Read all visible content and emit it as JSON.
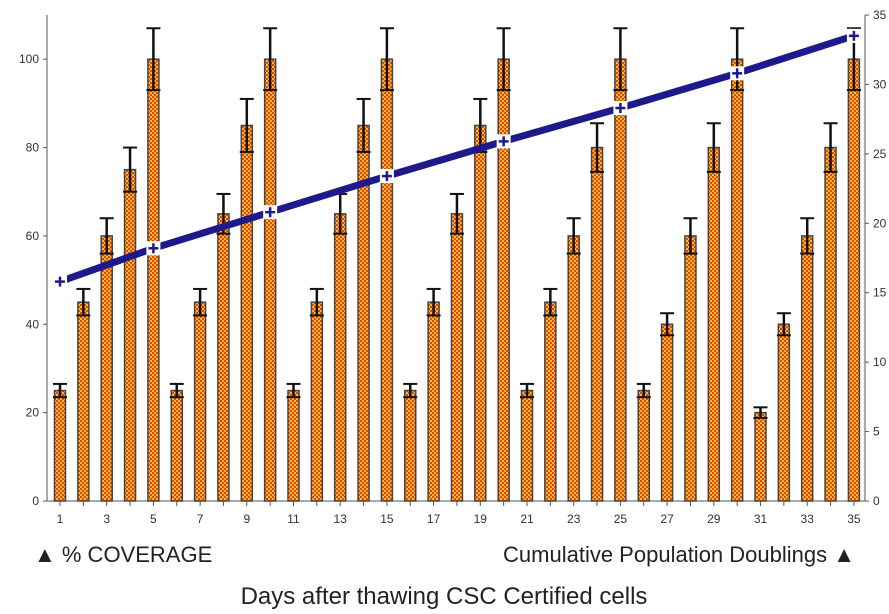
{
  "chart_data": {
    "type": "bar",
    "x": [
      1,
      2,
      3,
      4,
      5,
      6,
      7,
      8,
      9,
      10,
      11,
      12,
      13,
      14,
      15,
      16,
      17,
      18,
      19,
      20,
      21,
      22,
      23,
      24,
      25,
      26,
      27,
      28,
      29,
      30,
      31,
      32,
      33,
      34,
      35
    ],
    "x_tick_labels": [
      "1",
      "3",
      "5",
      "7",
      "9",
      "11",
      "13",
      "15",
      "17",
      "19",
      "21",
      "23",
      "25",
      "27",
      "29",
      "31",
      "33",
      "35"
    ],
    "series": [
      {
        "name": "% COVERAGE",
        "type": "bar",
        "axis": "left",
        "values": [
          25,
          45,
          60,
          75,
          100,
          25,
          45,
          65,
          85,
          100,
          25,
          45,
          65,
          85,
          100,
          25,
          45,
          65,
          85,
          100,
          25,
          45,
          60,
          80,
          100,
          25,
          40,
          60,
          80,
          100,
          20,
          40,
          60,
          80,
          100
        ],
        "error": [
          1.5,
          3,
          4,
          5,
          7,
          1.5,
          3,
          4.5,
          6,
          7,
          1.5,
          3,
          4.5,
          6,
          7,
          1.5,
          3,
          4.5,
          6,
          7,
          1.5,
          3,
          4,
          5.5,
          7,
          1.5,
          2.5,
          4,
          5.5,
          7,
          1.2,
          2.5,
          4,
          5.5,
          7
        ]
      },
      {
        "name": "Cumulative Population Doublings",
        "type": "line",
        "axis": "right",
        "points": [
          [
            1,
            15.8
          ],
          [
            5,
            18.2
          ],
          [
            10,
            20.8
          ],
          [
            15,
            23.4
          ],
          [
            20,
            25.9
          ],
          [
            25,
            28.3
          ],
          [
            30,
            30.8
          ],
          [
            35,
            33.5
          ]
        ]
      }
    ],
    "y_left_ticks": [
      "0",
      "20",
      "40",
      "60",
      "80",
      "100"
    ],
    "y_left_lim": [
      0,
      110
    ],
    "y_right_ticks": [
      "0",
      "5",
      "10",
      "15",
      "20",
      "25",
      "30",
      "35"
    ],
    "y_right_lim": [
      0,
      35
    ],
    "legend_left": "▲ % COVERAGE",
    "legend_right": "Cumulative Population Doublings ▲",
    "xlabel": "Days after thawing CSC Certified cells",
    "colors": {
      "bar_fill_a": "#e8401f",
      "bar_fill_b": "#f2c21b",
      "bar_edge": "#444444",
      "error_bar": "#111111",
      "line": "#1f1a8c",
      "marker_fill": "#ffffff",
      "marker_plus": "#1f1a8c"
    }
  }
}
